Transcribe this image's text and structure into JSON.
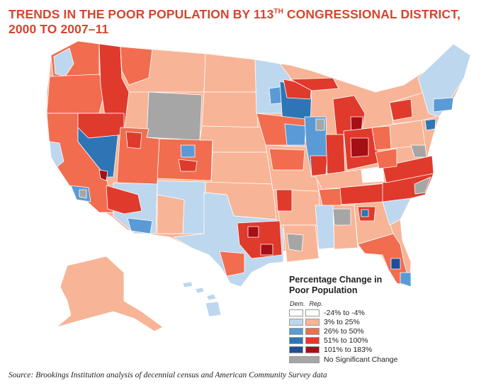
{
  "title": {
    "line1_prefix": "TRENDS IN THE POOR POPULATION BY 113",
    "line1_sup": "TH",
    "line1_suffix": " CONGRESSIONAL DISTRICT,",
    "line2": "2000 TO 2007–11"
  },
  "legend": {
    "title_line1": "Percentage Change in",
    "title_line2": "Poor Population",
    "dem_label": "Dem.",
    "rep_label": "Rep.",
    "items": [
      {
        "label": "-24% to -4%",
        "dem_color": "#ffffff",
        "rep_color": "#ffffff"
      },
      {
        "label": "3% to 25%",
        "dem_color": "#bdd7ee",
        "rep_color": "#f8b496"
      },
      {
        "label": "26% to 50%",
        "dem_color": "#5b9bd5",
        "rep_color": "#f26c4f"
      },
      {
        "label": "51% to 100%",
        "dem_color": "#2e75b6",
        "rep_color": "#e03a2c"
      },
      {
        "label": "101% to 183%",
        "dem_color": "#1f4e96",
        "rep_color": "#a50f15"
      }
    ],
    "no_change": {
      "label": "No Significant Change",
      "color": "#a6a6a6"
    }
  },
  "colors": {
    "title": "#d6452f",
    "state_border": "#ffffff",
    "land_default": "#f8b496"
  },
  "source": "Source: Brookings Institution analysis of decennial census and American Community Survey data"
}
